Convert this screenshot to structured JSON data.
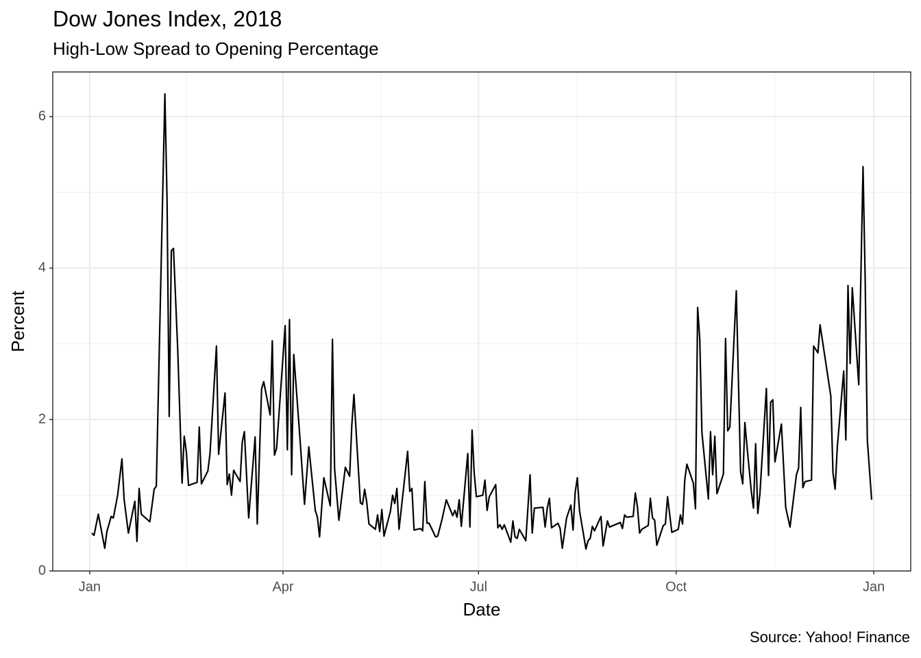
{
  "chart_data": {
    "type": "line",
    "title": "Dow Jones Index, 2018",
    "subtitle": "High-Low Spread to Opening Percentage",
    "x_label": "Date",
    "y_label": "Percent",
    "caption": "Source: Yahoo! Finance",
    "color": "#000000",
    "grid": true,
    "minor_grid": true,
    "xlim": [
      -17.2,
      382.2
    ],
    "ylim": [
      0,
      6.59
    ],
    "xticks": [
      {
        "value": 0,
        "label": "Jan"
      },
      {
        "value": 90,
        "label": "Apr"
      },
      {
        "value": 181,
        "label": "Jul"
      },
      {
        "value": 273,
        "label": "Oct"
      },
      {
        "value": 365,
        "label": "Jan"
      }
    ],
    "yticks": [
      0,
      2,
      4,
      6
    ],
    "x": [
      1,
      2,
      4,
      7,
      8,
      10,
      11,
      13,
      15,
      16,
      18,
      21,
      22,
      23,
      24,
      28,
      30,
      31,
      35,
      36,
      37,
      38,
      39,
      41,
      43,
      44,
      45,
      46,
      50,
      51,
      52,
      55,
      56,
      59,
      60,
      63,
      64,
      65,
      66,
      67,
      70,
      71,
      72,
      74,
      77,
      78,
      80,
      81,
      84,
      85,
      86,
      87,
      91,
      92,
      93,
      94,
      95,
      98,
      100,
      102,
      105,
      106,
      107,
      109,
      112,
      113,
      114,
      116,
      119,
      121,
      122,
      123,
      126,
      127,
      128,
      129,
      130,
      133,
      134,
      135,
      136,
      137,
      140,
      141,
      142,
      143,
      144,
      148,
      149,
      150,
      151,
      154,
      155,
      156,
      157,
      158,
      161,
      162,
      164,
      166,
      169,
      170,
      171,
      172,
      173,
      176,
      177,
      178,
      179,
      180,
      183,
      184,
      185,
      186,
      189,
      190,
      191,
      192,
      193,
      196,
      197,
      198,
      199,
      200,
      203,
      205,
      206,
      207,
      211,
      212,
      213,
      214,
      215,
      218,
      219,
      220,
      222,
      224,
      225,
      226,
      227,
      228,
      231,
      232,
      233,
      234,
      235,
      238,
      239,
      241,
      242,
      247,
      248,
      249,
      250,
      253,
      254,
      255,
      256,
      257,
      260,
      261,
      262,
      263,
      264,
      267,
      268,
      269,
      271,
      274,
      275,
      276,
      277,
      278,
      281,
      282,
      283,
      284,
      285,
      288,
      289,
      290,
      291,
      292,
      295,
      296,
      297,
      298,
      301,
      303,
      304,
      305,
      306,
      308,
      309,
      310,
      311,
      312,
      315,
      316,
      317,
      318,
      319,
      322,
      324,
      326,
      329,
      330,
      331,
      332,
      333,
      336,
      337,
      339,
      340,
      345,
      346,
      347,
      348,
      351,
      352,
      353,
      354,
      355,
      358,
      360,
      361,
      362,
      364
    ],
    "values": [
      0.5,
      0.47,
      0.75,
      0.3,
      0.52,
      0.72,
      0.7,
      1.0,
      1.48,
      0.95,
      0.5,
      0.92,
      0.39,
      1.09,
      0.75,
      0.65,
      1.08,
      1.12,
      6.3,
      4.9,
      2.04,
      4.23,
      4.26,
      2.9,
      1.16,
      1.78,
      1.57,
      1.13,
      1.17,
      1.9,
      1.15,
      1.32,
      1.55,
      2.97,
      1.54,
      2.35,
      1.14,
      1.28,
      1.0,
      1.33,
      1.18,
      1.7,
      1.84,
      0.7,
      1.77,
      0.62,
      2.4,
      2.5,
      2.06,
      3.04,
      1.53,
      1.62,
      3.24,
      1.6,
      3.32,
      1.27,
      2.86,
      1.7,
      0.88,
      1.64,
      0.8,
      0.71,
      0.45,
      1.23,
      0.86,
      3.06,
      1.35,
      0.67,
      1.37,
      1.25,
      1.92,
      2.33,
      0.9,
      0.88,
      1.08,
      0.9,
      0.62,
      0.55,
      0.74,
      0.52,
      0.81,
      0.46,
      0.79,
      1.0,
      0.89,
      1.09,
      0.55,
      1.58,
      1.05,
      1.09,
      0.54,
      0.56,
      0.53,
      1.18,
      0.63,
      0.63,
      0.45,
      0.46,
      0.68,
      0.94,
      0.73,
      0.8,
      0.71,
      0.94,
      0.59,
      1.55,
      0.58,
      1.86,
      1.29,
      0.98,
      1.0,
      1.2,
      0.8,
      0.98,
      1.14,
      0.57,
      0.61,
      0.55,
      0.61,
      0.38,
      0.66,
      0.45,
      0.43,
      0.55,
      0.4,
      1.27,
      0.5,
      0.83,
      0.84,
      0.58,
      0.83,
      0.96,
      0.57,
      0.63,
      0.56,
      0.3,
      0.7,
      0.87,
      0.54,
      1.04,
      1.23,
      0.8,
      0.29,
      0.4,
      0.43,
      0.59,
      0.53,
      0.72,
      0.33,
      0.66,
      0.58,
      0.64,
      0.56,
      0.74,
      0.71,
      0.72,
      1.03,
      0.84,
      0.5,
      0.55,
      0.6,
      0.96,
      0.7,
      0.67,
      0.34,
      0.6,
      0.62,
      0.98,
      0.51,
      0.55,
      0.74,
      0.62,
      1.2,
      1.41,
      1.16,
      0.82,
      3.48,
      3.06,
      1.83,
      0.95,
      1.84,
      1.27,
      1.78,
      1.02,
      1.28,
      3.07,
      1.85,
      1.9,
      3.7,
      1.31,
      1.15,
      1.96,
      1.64,
      1.05,
      0.83,
      1.68,
      0.76,
      1.02,
      2.41,
      1.26,
      2.23,
      2.26,
      1.44,
      1.94,
      0.84,
      0.58,
      1.27,
      1.36,
      2.16,
      1.1,
      1.18,
      1.2,
      2.97,
      2.88,
      3.25,
      2.31,
      1.3,
      1.08,
      1.63,
      2.64,
      1.73,
      3.77,
      2.74,
      3.74,
      2.46,
      5.34,
      3.85,
      1.73,
      0.94
    ]
  }
}
